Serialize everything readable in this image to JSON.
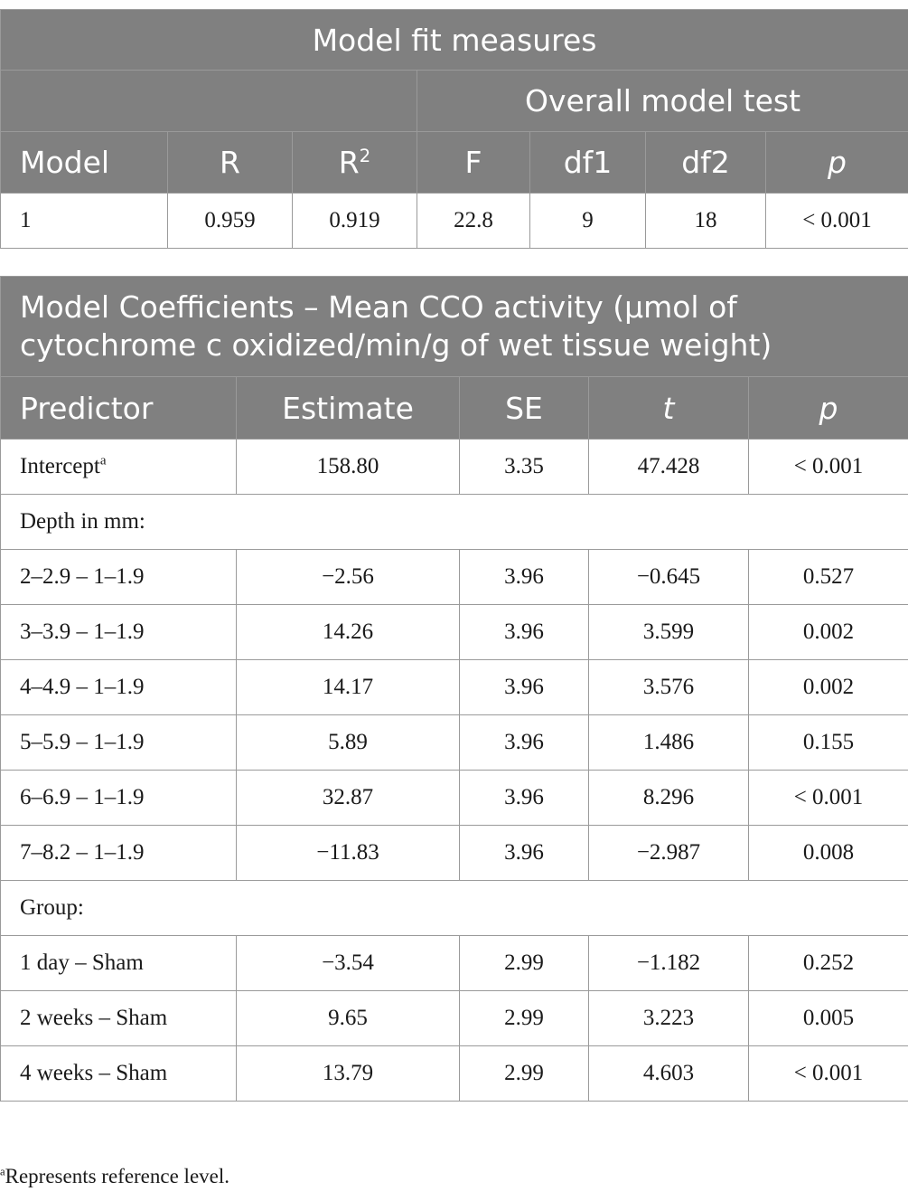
{
  "table1": {
    "title": "Model fit measures",
    "group_header": "Overall model test",
    "columns": {
      "model": "Model",
      "r": "R",
      "r2_base": "R",
      "r2_sup": "2",
      "f": "F",
      "df1": "df1",
      "df2": "df2",
      "p": "p"
    },
    "row": {
      "model": "1",
      "r": "0.959",
      "r2": "0.919",
      "f": "22.8",
      "df1": "9",
      "df2": "18",
      "p": "< 0.001"
    }
  },
  "table2": {
    "title_line1": "Model Coefficients – Mean CCO activity (μmol of",
    "title_line2": "cytochrome c oxidized/min/g of wet tissue weight)",
    "columns": {
      "predictor": "Predictor",
      "estimate": "Estimate",
      "se": "SE",
      "t": "t",
      "p": "p"
    },
    "intercept": {
      "label": "Intercept",
      "sup": "a",
      "estimate": "158.80",
      "se": "3.35",
      "t": "47.428",
      "p": "< 0.001"
    },
    "section_depth": "Depth in mm:",
    "depth_rows": [
      {
        "predictor": "2–2.9 – 1–1.9",
        "estimate": "−2.56",
        "se": "3.96",
        "t": "−0.645",
        "p": "0.527"
      },
      {
        "predictor": "3–3.9 – 1–1.9",
        "estimate": "14.26",
        "se": "3.96",
        "t": "3.599",
        "p": "0.002"
      },
      {
        "predictor": "4–4.9 – 1–1.9",
        "estimate": "14.17",
        "se": "3.96",
        "t": "3.576",
        "p": "0.002"
      },
      {
        "predictor": "5–5.9 – 1–1.9",
        "estimate": "5.89",
        "se": "3.96",
        "t": "1.486",
        "p": "0.155"
      },
      {
        "predictor": "6–6.9 – 1–1.9",
        "estimate": "32.87",
        "se": "3.96",
        "t": "8.296",
        "p": "< 0.001"
      },
      {
        "predictor": "7–8.2 – 1–1.9",
        "estimate": "−11.83",
        "se": "3.96",
        "t": "−2.987",
        "p": "0.008"
      }
    ],
    "section_group": "Group:",
    "group_rows": [
      {
        "predictor": "1 day – Sham",
        "estimate": "−3.54",
        "se": "2.99",
        "t": "−1.182",
        "p": "0.252"
      },
      {
        "predictor": "2 weeks – Sham",
        "estimate": "9.65",
        "se": "2.99",
        "t": "3.223",
        "p": "0.005"
      },
      {
        "predictor": "4 weeks – Sham",
        "estimate": "13.79",
        "se": "2.99",
        "t": "4.603",
        "p": "< 0.001"
      }
    ]
  },
  "footnote": {
    "sup": "a",
    "text": "Represents reference level."
  }
}
